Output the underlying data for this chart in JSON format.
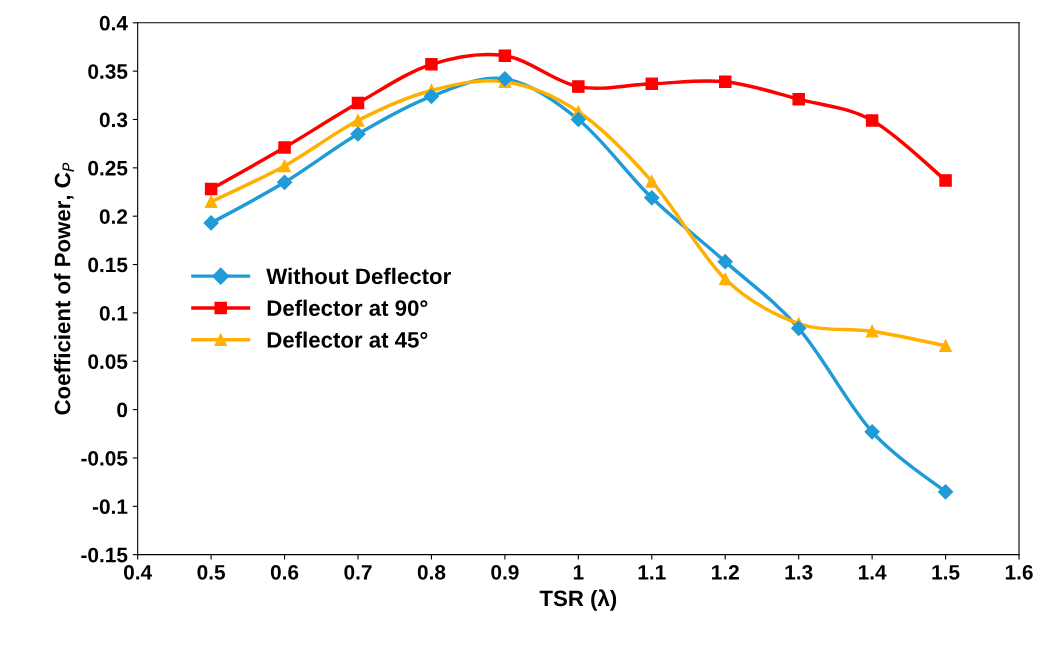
{
  "chart_data": {
    "type": "line",
    "xlabel": "TSR (λ)",
    "ylabel": "Coefficient of Power, C$_{P}$",
    "x": [
      0.5,
      0.6,
      0.7,
      0.8,
      0.9,
      1,
      1.1,
      1.2,
      1.3,
      1.4,
      1.5
    ],
    "series": [
      {
        "name": "Without Deflector",
        "color": "#1f9bd7",
        "marker": "diamond",
        "values": [
          0.193,
          0.235,
          0.285,
          0.324,
          0.342,
          0.3,
          0.219,
          0.153,
          0.084,
          -0.023,
          -0.085
        ]
      },
      {
        "name": "Deflector at 90°",
        "color": "#ff0000",
        "marker": "square",
        "values": [
          0.228,
          0.271,
          0.317,
          0.357,
          0.366,
          0.334,
          0.337,
          0.339,
          0.321,
          0.299,
          0.237
        ]
      },
      {
        "name": "Deflector at 45°",
        "color": "#ffb000",
        "marker": "triangle",
        "values": [
          0.215,
          0.252,
          0.299,
          0.33,
          0.339,
          0.308,
          0.236,
          0.135,
          0.089,
          0.081,
          0.066
        ]
      }
    ],
    "xlim": [
      0.4,
      1.6
    ],
    "xticks": [
      0.4,
      0.5,
      0.6,
      0.7,
      0.8,
      0.9,
      1,
      1.1,
      1.2,
      1.3,
      1.4,
      1.5,
      1.6
    ],
    "ylim": [
      -0.15,
      0.4
    ],
    "yticks": [
      -0.15,
      -0.1,
      -0.05,
      0,
      0.05,
      0.1,
      0.15,
      0.2,
      0.25,
      0.3,
      0.35,
      0.4
    ],
    "grid": false,
    "legend": "center left",
    "line_style": "solid"
  }
}
